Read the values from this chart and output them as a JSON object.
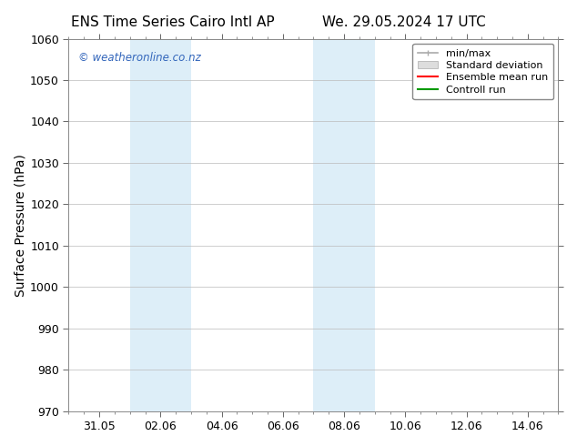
{
  "title_left": "ENS Time Series Cairo Intl AP",
  "title_right": "We. 29.05.2024 17 UTC",
  "ylabel": "Surface Pressure (hPa)",
  "ylim": [
    970,
    1060
  ],
  "yticks": [
    970,
    980,
    990,
    1000,
    1010,
    1020,
    1030,
    1040,
    1050,
    1060
  ],
  "xlim": [
    0,
    16
  ],
  "xtick_labels": [
    "31.05",
    "02.06",
    "04.06",
    "06.06",
    "08.06",
    "10.06",
    "12.06",
    "14.06"
  ],
  "xtick_positions": [
    1,
    3,
    5,
    7,
    9,
    11,
    13,
    15
  ],
  "shaded_regions": [
    {
      "x_start": 2,
      "x_end": 4,
      "color": "#ddeef8"
    },
    {
      "x_start": 8,
      "x_end": 10,
      "color": "#ddeef8"
    }
  ],
  "legend_labels": [
    "min/max",
    "Standard deviation",
    "Ensemble mean run",
    "Controll run"
  ],
  "legend_colors_line": [
    "#aaaaaa",
    "#cccccc",
    "#ff0000",
    "#009900"
  ],
  "watermark_text": "© weatheronline.co.nz",
  "watermark_color": "#3366bb",
  "bg_color": "#ffffff",
  "grid_color": "#bbbbbb",
  "title_fontsize": 11,
  "axis_fontsize": 10,
  "tick_fontsize": 9,
  "legend_fontsize": 8
}
